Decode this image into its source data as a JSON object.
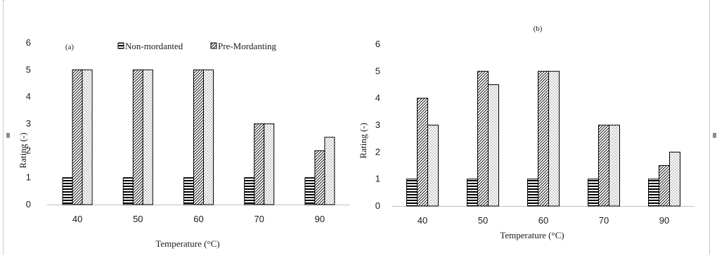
{
  "chart_data": [
    {
      "type": "bar",
      "title": "(a)",
      "categories": [
        "40",
        "50",
        "60",
        "70",
        "90"
      ],
      "series": [
        {
          "name": "Non-mordanted",
          "values": [
            1,
            1,
            1,
            1,
            1
          ],
          "pattern": "horizontal-stripes"
        },
        {
          "name": "",
          "values": [
            5,
            5,
            5,
            3,
            2
          ],
          "pattern": "diagonal-stripes"
        },
        {
          "name": "Pre-Mordanting",
          "values": [
            5,
            5,
            5,
            3,
            2.5
          ],
          "pattern": "dots"
        }
      ],
      "legend": [
        "Non-mordanted",
        "Pre-Mordanting"
      ],
      "legend_position": "top",
      "xlabel": "Temperature (°C)",
      "ylabel": "Rating (-)",
      "ylim": [
        0,
        6
      ],
      "yticks": [
        "0",
        "1",
        "2",
        "3",
        "4",
        "5",
        "6"
      ],
      "grid": false
    },
    {
      "type": "bar",
      "title": "(b)",
      "categories": [
        "40",
        "50",
        "60",
        "70",
        "90"
      ],
      "series": [
        {
          "name": "",
          "values": [
            1,
            1,
            1,
            1,
            1
          ],
          "pattern": "horizontal-stripes"
        },
        {
          "name": "",
          "values": [
            4,
            5,
            5,
            3,
            1.5
          ],
          "pattern": "diagonal-stripes"
        },
        {
          "name": "",
          "values": [
            3,
            4.5,
            5,
            3,
            2
          ],
          "pattern": "dots"
        }
      ],
      "xlabel": "Temperature (°C)",
      "ylabel": "Rating (-)",
      "ylim": [
        0,
        6
      ],
      "yticks": [
        "0",
        "1",
        "2",
        "3",
        "4",
        "5",
        "6"
      ],
      "grid": false
    }
  ],
  "colors": {
    "ink": "#000000",
    "axis": "#bfbfbf",
    "label": "#1a1a1a"
  }
}
